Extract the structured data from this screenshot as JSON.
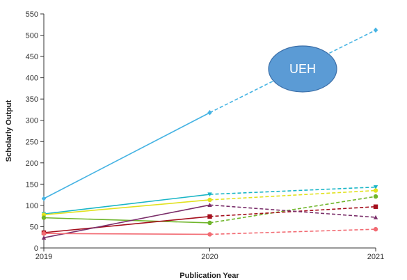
{
  "chart_data": {
    "type": "line",
    "xlabel": "Publication Year",
    "ylabel": "Scholarly Output",
    "x": [
      "2019",
      "2020",
      "2021"
    ],
    "ylim": [
      0,
      550
    ],
    "yticks": [
      0,
      50,
      100,
      150,
      200,
      250,
      300,
      350,
      400,
      450,
      500,
      550
    ],
    "grid": false,
    "legend": "none",
    "note": "Segment from 2020 to 2021 drawn dashed",
    "series": [
      {
        "color": "#45b3e3",
        "marker": "diamond",
        "values": [
          116,
          318,
          512
        ]
      },
      {
        "color": "#19b5c6",
        "marker": "triangle-down",
        "values": [
          80,
          126,
          143
        ]
      },
      {
        "color": "#e1e11f",
        "marker": "circle",
        "values": [
          78,
          113,
          135
        ]
      },
      {
        "color": "#6fb52b",
        "marker": "circle",
        "values": [
          71,
          59,
          121
        ]
      },
      {
        "color": "#a50f1d",
        "marker": "square",
        "values": [
          36,
          74,
          97
        ]
      },
      {
        "color": "#7a2e6a",
        "marker": "triangle-up",
        "values": [
          24,
          101,
          72
        ]
      },
      {
        "color": "#f26b73",
        "marker": "circle",
        "values": [
          34,
          32,
          44
        ]
      }
    ]
  },
  "callout": {
    "label": "UEH",
    "fill": "#5b9bd5",
    "stroke": "#3c6fa8"
  }
}
